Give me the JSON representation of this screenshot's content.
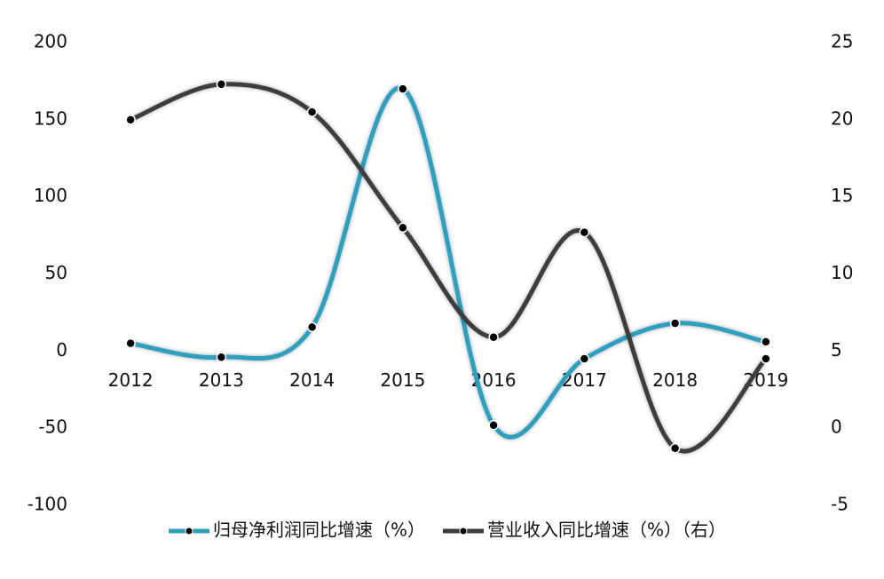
{
  "chart_data": {
    "type": "line",
    "categories": [
      "2012",
      "2013",
      "2014",
      "2015",
      "2016",
      "2017",
      "2018",
      "2019"
    ],
    "series": [
      {
        "name": "归母净利润同比增速（%）",
        "color": "#2f9fbe",
        "values": [
          5,
          -4,
          15.5,
          170,
          -48,
          -5,
          18,
          6
        ]
      },
      {
        "name": "营业收入同比增速（%）（右）",
        "color": "#3c3c3c",
        "axis": "y2",
        "values": [
          20,
          22.3,
          20.5,
          13,
          5.9,
          12.7,
          -1.3,
          4.5
        ]
      }
    ],
    "ylim": [
      -100,
      200
    ],
    "yticks": [
      -100,
      -50,
      0,
      50,
      100,
      150,
      200
    ],
    "y2lim": [
      -5,
      25
    ],
    "y2ticks": [
      -5,
      0,
      5,
      10,
      15,
      20,
      25
    ],
    "smooth": true,
    "grid": false,
    "legend": "bottom"
  }
}
